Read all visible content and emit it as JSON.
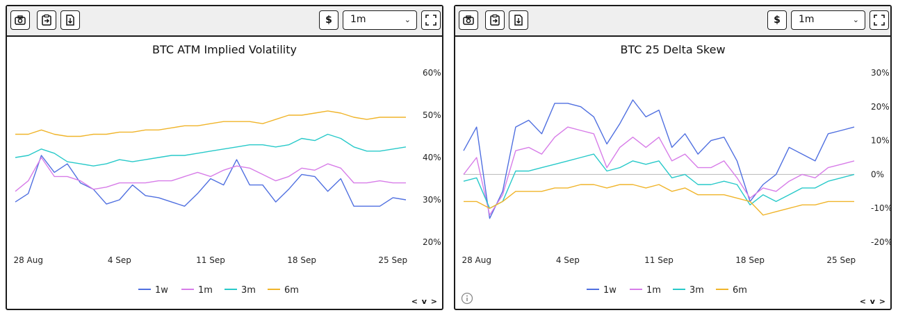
{
  "panels": [
    {
      "toolbar": {
        "camera_icon": "camera-icon",
        "clipboard_icon": "clipboard-icon",
        "download_icon": "download-icon",
        "currency_label": "$",
        "range_selected": "1m",
        "expand_icon": "expand-icon"
      },
      "nav_label": "< v >",
      "chart_data": {
        "type": "line",
        "title": "BTC ATM Implied Volatility",
        "y_axis_side": "right",
        "ylim": [
          20,
          60
        ],
        "y_ticks": [
          60,
          50,
          40,
          30,
          20
        ],
        "y_tick_labels": [
          "60%",
          "50%",
          "40%",
          "30%",
          "20%"
        ],
        "x_ticks": [
          "28 Aug",
          "4 Sep",
          "11 Sep",
          "18 Sep",
          "25 Sep"
        ],
        "x_range_days": [
          0,
          30
        ],
        "x_tick_days": [
          1,
          8,
          15,
          22,
          29
        ],
        "x_days": [
          0,
          1,
          2,
          3,
          4,
          5,
          6,
          7,
          8,
          9,
          10,
          11,
          12,
          13,
          14,
          15,
          16,
          17,
          18,
          19,
          20,
          21,
          22,
          23,
          24,
          25,
          26,
          27,
          28,
          29,
          30
        ],
        "legend_position": "bottom",
        "colors": {
          "1w": "#4f6fe0",
          "1m": "#d77ce8",
          "3m": "#27c9c9",
          "6m": "#f0b429"
        },
        "series": [
          {
            "name": "1w",
            "color": "#4f6fe0",
            "values": [
              29.5,
              31.5,
              40.5,
              36.5,
              38.5,
              34,
              32.5,
              29,
              30,
              33.5,
              31,
              30.5,
              29.5,
              28.5,
              31.5,
              35,
              33.5,
              39.5,
              33.5,
              33.5,
              29.5,
              32.5,
              36,
              35.5,
              32,
              35,
              28.5,
              28.5,
              28.5,
              30.5,
              30
            ]
          },
          {
            "name": "1m",
            "color": "#d77ce8",
            "values": [
              32,
              34.5,
              40,
              35.5,
              35.5,
              34.5,
              32.5,
              33,
              34,
              34,
              34,
              34.5,
              34.5,
              35.5,
              36.5,
              35.5,
              37,
              38,
              37.5,
              36,
              34.5,
              35.5,
              37.5,
              37,
              38.5,
              37.5,
              34,
              34,
              34.5,
              34,
              34
            ]
          },
          {
            "name": "3m",
            "color": "#27c9c9",
            "values": [
              40,
              40.5,
              42,
              41,
              39,
              38.5,
              38,
              38.5,
              39.5,
              39,
              39.5,
              40,
              40.5,
              40.5,
              41,
              41.5,
              42,
              42.5,
              43,
              43,
              42.5,
              43,
              44.5,
              44,
              45.5,
              44.5,
              42.5,
              41.5,
              41.5,
              42,
              42.5
            ]
          },
          {
            "name": "6m",
            "color": "#f0b429",
            "values": [
              45.5,
              45.5,
              46.5,
              45.5,
              45,
              45,
              45.5,
              45.5,
              46,
              46,
              46.5,
              46.5,
              47,
              47.5,
              47.5,
              48,
              48.5,
              48.5,
              48.5,
              48,
              49,
              50,
              50,
              50.5,
              51,
              50.5,
              49.5,
              49,
              49.5,
              49.5,
              49.5
            ]
          }
        ]
      }
    },
    {
      "toolbar": {
        "camera_icon": "camera-icon",
        "clipboard_icon": "clipboard-icon",
        "download_icon": "download-icon",
        "currency_label": "$",
        "range_selected": "1m",
        "expand_icon": "expand-icon"
      },
      "nav_label": "< v >",
      "info_icon": "info-icon",
      "chart_data": {
        "type": "line",
        "title": "BTC 25 Delta Skew",
        "y_axis_side": "right",
        "ylim": [
          -20,
          30
        ],
        "y_ticks": [
          30,
          20,
          10,
          0,
          -10,
          -20
        ],
        "y_tick_labels": [
          "30%",
          "20%",
          "10%",
          "0%",
          "-10%",
          "-20%"
        ],
        "zero_line": true,
        "x_ticks": [
          "28 Aug",
          "4 Sep",
          "11 Sep",
          "18 Sep",
          "25 Sep"
        ],
        "x_range_days": [
          0,
          30
        ],
        "x_tick_days": [
          1,
          8,
          15,
          22,
          29
        ],
        "x_days": [
          0,
          1,
          2,
          3,
          4,
          5,
          6,
          7,
          8,
          9,
          10,
          11,
          12,
          13,
          14,
          15,
          16,
          17,
          18,
          19,
          20,
          21,
          22,
          23,
          24,
          25,
          26,
          27,
          28,
          29,
          30
        ],
        "legend_position": "bottom",
        "colors": {
          "1w": "#4f6fe0",
          "1m": "#d77ce8",
          "3m": "#27c9c9",
          "6m": "#f0b429"
        },
        "series": [
          {
            "name": "1w",
            "color": "#4f6fe0",
            "values": [
              7,
              14,
              -13,
              -5,
              14,
              16,
              12,
              21,
              21,
              20,
              17,
              9,
              15,
              22,
              17,
              19,
              8,
              12,
              6,
              10,
              11,
              4,
              -8,
              -3,
              0,
              8,
              6,
              4,
              12,
              13,
              14
            ]
          },
          {
            "name": "1m",
            "color": "#d77ce8",
            "values": [
              0,
              5,
              -12,
              -6,
              7,
              8,
              6,
              11,
              14,
              13,
              12,
              2,
              8,
              11,
              8,
              11,
              4,
              6,
              2,
              2,
              4,
              -1,
              -7,
              -4,
              -5,
              -2,
              0,
              -1,
              2,
              3,
              4
            ]
          },
          {
            "name": "3m",
            "color": "#27c9c9",
            "values": [
              -2,
              -1,
              -10,
              -8,
              1,
              1,
              2,
              3,
              4,
              5,
              6,
              1,
              2,
              4,
              3,
              4,
              -1,
              0,
              -3,
              -3,
              -2,
              -3,
              -9,
              -6,
              -8,
              -6,
              -4,
              -4,
              -2,
              -1,
              0
            ]
          },
          {
            "name": "6m",
            "color": "#f0b429",
            "values": [
              -8,
              -8,
              -10,
              -8,
              -5,
              -5,
              -5,
              -4,
              -4,
              -3,
              -3,
              -4,
              -3,
              -3,
              -4,
              -3,
              -5,
              -4,
              -6,
              -6,
              -6,
              -7,
              -8,
              -12,
              -11,
              -10,
              -9,
              -9,
              -8,
              -8,
              -8
            ]
          }
        ]
      }
    }
  ]
}
